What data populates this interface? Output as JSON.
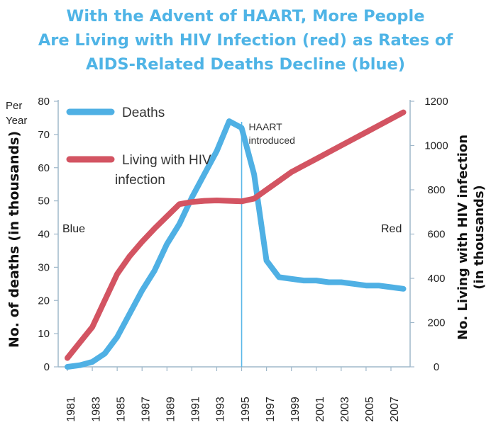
{
  "title_lines": [
    "With the Advent of HAART, More People",
    "Are Living with HIV Infection (red) as Rates of",
    "AIDS-Related Deaths Decline (blue)"
  ],
  "chart_data": {
    "type": "line",
    "title": "With the Advent of HAART, More People Are Living with HIV Infection (red) as Rates of AIDS-Related Deaths Decline (blue)",
    "x_tick_labels": [
      "1981",
      "1983",
      "1985",
      "1987",
      "1989",
      "1991",
      "1993",
      "1995",
      "1997",
      "1999",
      "2001",
      "2003",
      "2005",
      "2007"
    ],
    "left_axis": {
      "label": "No. of deaths  (in thousands)",
      "unit_note": [
        "Per",
        "Year"
      ],
      "side_note": "Blue",
      "ylim": [
        0,
        80
      ],
      "ticks": [
        "0",
        "10",
        "20",
        "30",
        "40",
        "50",
        "60",
        "70",
        "80"
      ]
    },
    "right_axis": {
      "label_lines": [
        "No. Living with HIV infection",
        "(in thousands)"
      ],
      "side_note": "Red",
      "ylim": [
        0,
        1200
      ],
      "ticks": [
        "0",
        "200",
        "400",
        "600",
        "800",
        "1000",
        "1200"
      ]
    },
    "legend_position": "top-left",
    "series": [
      {
        "name": "Deaths",
        "color": "#4fb0e4",
        "axis": "left",
        "x": [
          1981,
          1982,
          1983,
          1984,
          1985,
          1986,
          1987,
          1988,
          1989,
          1990,
          1991,
          1992,
          1993,
          1994,
          1995,
          1996,
          1997,
          1998,
          1999,
          2000,
          2001,
          2002,
          2003,
          2004,
          2005,
          2006,
          2007,
          2008
        ],
        "values": [
          0,
          0.5,
          1.5,
          4,
          9,
          16,
          23,
          29,
          37,
          43,
          51,
          58,
          65,
          74,
          72,
          58,
          32,
          27,
          26.5,
          26,
          26,
          25.5,
          25.5,
          25,
          24.5,
          24.5,
          24,
          23.5
        ]
      },
      {
        "name": "Living with HIV infection",
        "color": "#d35462",
        "axis": "right",
        "x": [
          1981,
          1982,
          1983,
          1984,
          1985,
          1986,
          1987,
          1988,
          1989,
          1990,
          1991,
          1992,
          1993,
          1994,
          1995,
          1996,
          1997,
          1998,
          1999,
          2000,
          2001,
          2002,
          2003,
          2004,
          2005,
          2006,
          2007,
          2008
        ],
        "values": [
          40,
          110,
          180,
          300,
          420,
          500,
          565,
          625,
          680,
          735,
          745,
          750,
          752,
          750,
          748,
          760,
          800,
          840,
          880,
          910,
          940,
          970,
          1000,
          1030,
          1060,
          1090,
          1120,
          1150
        ]
      }
    ],
    "annotations": [
      {
        "text_lines": [
          "HAART",
          "introduced"
        ],
        "x": 1995
      }
    ]
  }
}
